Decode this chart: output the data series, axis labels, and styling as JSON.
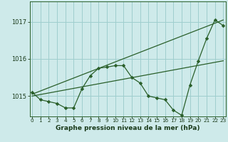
{
  "xlabel": "Graphe pression niveau de la mer (hPa)",
  "x_ticks": [
    0,
    1,
    2,
    3,
    4,
    5,
    6,
    7,
    8,
    9,
    10,
    11,
    12,
    13,
    14,
    15,
    16,
    17,
    18,
    19,
    20,
    21,
    22,
    23
  ],
  "y_ticks": [
    1015,
    1016,
    1017
  ],
  "xlim": [
    -0.3,
    23.3
  ],
  "ylim": [
    1014.45,
    1017.55
  ],
  "bg_color": "#ceeaea",
  "grid_color": "#9fcece",
  "line_color": "#2a5f2a",
  "line1": {
    "x": [
      0,
      1,
      2,
      3,
      4,
      5,
      6,
      7,
      8,
      9,
      10,
      11,
      12,
      13,
      14,
      15,
      16,
      17,
      18,
      19,
      20,
      21,
      22,
      23
    ],
    "y": [
      1015.1,
      1014.9,
      1014.85,
      1014.8,
      1014.68,
      1014.68,
      1015.2,
      1015.55,
      1015.75,
      1015.78,
      1015.82,
      1015.82,
      1015.5,
      1015.35,
      1015.0,
      1014.95,
      1014.9,
      1014.62,
      1014.48,
      1015.3,
      1015.95,
      1016.55,
      1017.05,
      1016.9
    ]
  },
  "line2": {
    "x": [
      0,
      23
    ],
    "y": [
      1015.0,
      1015.95
    ]
  },
  "line3": {
    "x": [
      0,
      23
    ],
    "y": [
      1015.05,
      1017.05
    ]
  }
}
